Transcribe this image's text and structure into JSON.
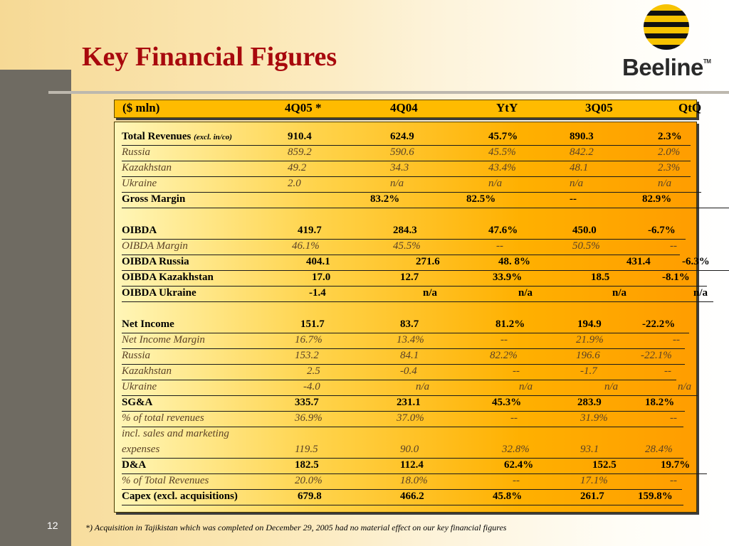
{
  "slide": {
    "title": "Key Financial Figures",
    "slide_number": "12",
    "footnote": "*)  Acquisition in Tajikistan which was completed on December 29, 2005 had no material effect on our key financial figures",
    "logo_text": "Beeline",
    "logo_tm": "TM",
    "colors": {
      "title": "#a8090d",
      "header_fill": "#ffbb00",
      "sidebar": "#6f6b62"
    }
  },
  "table": {
    "headers": [
      "($ mln)",
      "4Q05 *",
      "4Q04",
      "YtY",
      "3Q05",
      "QtQ"
    ],
    "rows": [
      {
        "label": "Total Revenues",
        "label_sub": "(excl. in/co)",
        "style": "bold",
        "cells": [
          "910.4",
          "624.9",
          "45.7%",
          "890.3",
          "2.3%"
        ]
      },
      {
        "label": "Russia",
        "style": "ital",
        "cells": [
          "859.2",
          "590.6",
          "45.5%",
          "842.2",
          "2.0%"
        ]
      },
      {
        "label": "Kazakhstan",
        "style": "ital",
        "cells": [
          "49.2",
          "34.3",
          "43.4%",
          "48.1",
          "2.3%"
        ]
      },
      {
        "label": "Ukraine",
        "style": "ital",
        "cells": [
          "2.0",
          "n/a",
          "n/a",
          "n/a",
          "n/a"
        ]
      },
      {
        "label": "Gross Margin",
        "style": "bold",
        "cells": [
          "83.2%",
          "82.5%",
          "--",
          "82.9%"
        ]
      },
      {
        "label": "OIBDA",
        "style": "bold",
        "cells": [
          "419.7",
          "284.3",
          "47.6%",
          "450.0",
          "-6.7%"
        ]
      },
      {
        "label": "OIBDA Margin",
        "style": "ital",
        "cells": [
          "46.1%",
          "45.5%",
          "--",
          "50.5%",
          "--"
        ]
      },
      {
        "label": "OIBDA Russia",
        "style": "bold",
        "cells": [
          "404.1",
          "271.6",
          "48. 8%",
          "431.4",
          "-6.3%"
        ]
      },
      {
        "label": "OIBDA Kazakhstan",
        "style": "bold",
        "cells": [
          "17.0",
          "12.7",
          "33.9%",
          "18.5",
          "-8.1%"
        ]
      },
      {
        "label": "OIBDA Ukraine",
        "style": "bold",
        "cells": [
          "-1.4",
          "n/a",
          "n/a",
          "n/a",
          "n/a"
        ]
      },
      {
        "label": "Net Income",
        "style": "bold",
        "cells": [
          "151.7",
          "83.7",
          "81.2%",
          "194.9",
          "-22.2%"
        ]
      },
      {
        "label": "Net Income Margin",
        "style": "ital",
        "cells": [
          "16.7%",
          "13.4%",
          "--",
          "21.9%",
          "--"
        ]
      },
      {
        "label": "Russia",
        "style": "ital",
        "cells": [
          "153.2",
          "84.1",
          "82.2%",
          "196.6",
          "-22.1%"
        ]
      },
      {
        "label": "Kazakhstan",
        "style": "ital",
        "cells": [
          "2.5",
          "-0.4",
          "--",
          "-1.7",
          "--"
        ]
      },
      {
        "label": "Ukraine",
        "style": "ital",
        "cells": [
          "-4.0",
          "n/a",
          "n/a",
          "n/a",
          "n/a"
        ]
      },
      {
        "label": "SG&A",
        "style": "bold",
        "cells": [
          "335.7",
          "231.1",
          "45.3%",
          "283.9",
          "18.2%"
        ]
      },
      {
        "label": "% of total revenues",
        "style": "ital",
        "cells": [
          "36.9%",
          "37.0%",
          "--",
          "31.9%",
          "--"
        ]
      },
      {
        "label": "incl. sales and marketing",
        "style": "ital",
        "cells": []
      },
      {
        "label": "expenses",
        "style": "ital",
        "cells": [
          "119.5",
          "90.0",
          "32.8%",
          "93.1",
          "28.4%"
        ]
      },
      {
        "label": "D&A",
        "style": "bold",
        "cells": [
          "182.5",
          "112.4",
          "62.4%",
          "152.5",
          "19.7%"
        ]
      },
      {
        "label": "% of Total Revenues",
        "style": "ital",
        "cells": [
          "20.0%",
          "18.0%",
          "--",
          "17.1%",
          "--"
        ]
      },
      {
        "label": "Capex (excl. acquisitions)",
        "style": "bold",
        "cells": [
          "679.8",
          "466.2",
          "45.8%",
          "261.7",
          "159.8%"
        ]
      }
    ]
  }
}
